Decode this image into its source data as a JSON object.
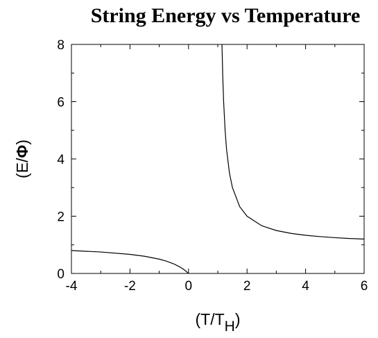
{
  "chart_data": {
    "type": "line",
    "title": "String Energy vs Temperature",
    "xlabel": {
      "main": "(T/T",
      "sub": "H",
      "close": ")"
    },
    "ylabel": {
      "open": "(E/",
      "symbol": "Φ",
      "close": ")"
    },
    "xlim": [
      -4,
      6
    ],
    "ylim": [
      0,
      8
    ],
    "x_ticks": [
      -4,
      -2,
      0,
      2,
      4,
      6
    ],
    "y_ticks": [
      0,
      2,
      4,
      6,
      8
    ],
    "grid": false,
    "series": [
      {
        "points": [
          [
            -4,
            0.8
          ],
          [
            -3,
            0.75
          ],
          [
            -2,
            0.667
          ],
          [
            -1.5,
            0.6
          ],
          [
            -1,
            0.5
          ],
          [
            -0.75,
            0.429
          ],
          [
            -0.5,
            0.333
          ],
          [
            -0.3,
            0.231
          ],
          [
            -0.15,
            0.13
          ],
          [
            -0.05,
            0.048
          ],
          [
            0,
            0
          ]
        ]
      },
      {
        "points": [
          [
            1.143,
            8.0
          ],
          [
            1.17,
            6.88
          ],
          [
            1.2,
            6.0
          ],
          [
            1.25,
            5.0
          ],
          [
            1.3,
            4.33
          ],
          [
            1.4,
            3.5
          ],
          [
            1.5,
            3.0
          ],
          [
            1.75,
            2.33
          ],
          [
            2,
            2.0
          ],
          [
            2.5,
            1.667
          ],
          [
            3,
            1.5
          ],
          [
            3.5,
            1.4
          ],
          [
            4,
            1.333
          ],
          [
            4.5,
            1.286
          ],
          [
            5,
            1.25
          ],
          [
            5.5,
            1.222
          ],
          [
            6,
            1.2
          ]
        ]
      }
    ]
  }
}
